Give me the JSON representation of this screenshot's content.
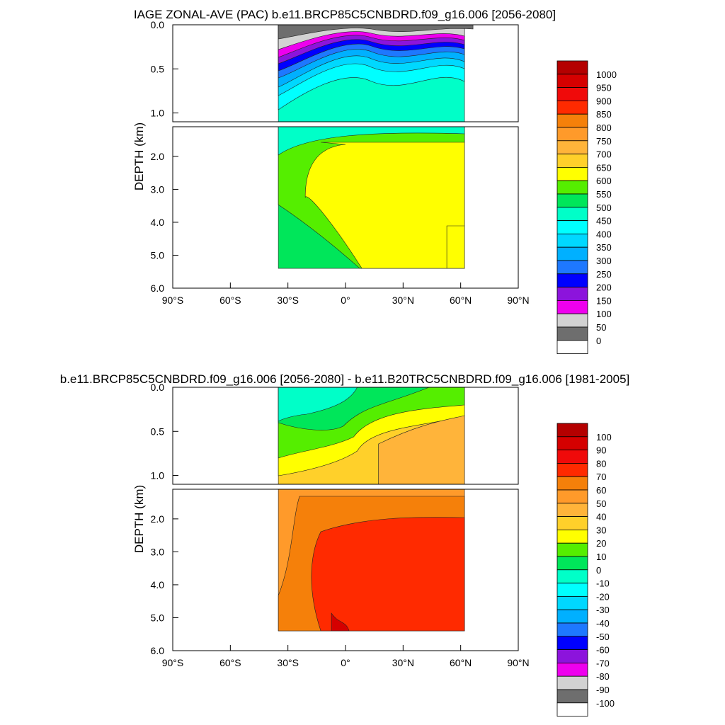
{
  "chart_data": [
    {
      "type": "heatmap",
      "title": "IAGE ZONAL-AVE (PAC) b.e11.BRCP85C5CNBDRD.f09_g16.006 [2056-2080]",
      "ylabel": "DEPTH (km)",
      "xlabel": "",
      "x_range": [
        -90,
        90
      ],
      "y_upper_range": [
        0.0,
        1.1
      ],
      "y_lower_range": [
        1.1,
        6.0
      ],
      "x_ticks": [
        -90,
        -60,
        -30,
        0,
        30,
        60,
        90
      ],
      "x_tick_labels": [
        "90°S",
        "60°S",
        "30°S",
        "0°",
        "30°N",
        "60°N",
        "90°N"
      ],
      "y_upper_ticks": [
        0.0,
        0.5,
        1.0
      ],
      "y_upper_tick_labels": [
        "0.0",
        "0.5",
        "1.0"
      ],
      "y_lower_ticks": [
        2.0,
        3.0,
        4.0,
        5.0,
        6.0
      ],
      "y_lower_tick_labels": [
        "2.0",
        "3.0",
        "4.0",
        "5.0",
        "6.0"
      ],
      "colorbar_levels": [
        "1000",
        "950",
        "900",
        "850",
        "800",
        "750",
        "700",
        "650",
        "600",
        "550",
        "500",
        "450",
        "400",
        "350",
        "300",
        "250",
        "200",
        "150",
        "100",
        "50",
        "0"
      ],
      "colorbar_colors": [
        "#b40000",
        "#d50000",
        "#f00a0a",
        "#ff2a00",
        "#f5800a",
        "#ff9a2a",
        "#ffb43a",
        "#ffd02a",
        "#ffff00",
        "#55ee00",
        "#00e65a",
        "#00ffc8",
        "#00ffff",
        "#00d8ff",
        "#00b0ff",
        "#1e78ff",
        "#0000ff",
        "#8c14dc",
        "#ee00ee",
        "#d2d2d2",
        "#6e6e6e",
        "#ffffff"
      ],
      "field": {
        "kind": "age",
        "ocean_x_range": [
          -35,
          62
        ],
        "bottom_depth_km": 5.4,
        "zonal_mean_age_years": [
          {
            "depth_km": 0.1,
            "value": 10
          },
          {
            "depth_km": 0.5,
            "value": 240
          },
          {
            "depth_km": 1.0,
            "value": 460
          },
          {
            "depth_km": 1.5,
            "value": 560
          },
          {
            "depth_km": 3.0,
            "value": 610
          },
          {
            "depth_km": 5.0,
            "value": 580
          }
        ]
      }
    },
    {
      "type": "heatmap",
      "title": "b.e11.BRCP85C5CNBDRD.f09_g16.006 [2056-2080] - b.e11.B20TRC5CNBDRD.f09_g16.006 [1981-2005]",
      "ylabel": "DEPTH (km)",
      "xlabel": "",
      "x_range": [
        -90,
        90
      ],
      "y_upper_range": [
        0.0,
        1.1
      ],
      "y_lower_range": [
        1.1,
        6.0
      ],
      "x_ticks": [
        -90,
        -60,
        -30,
        0,
        30,
        60,
        90
      ],
      "x_tick_labels": [
        "90°S",
        "60°S",
        "30°S",
        "0°",
        "30°N",
        "60°N",
        "90°N"
      ],
      "y_upper_ticks": [
        0.0,
        0.5,
        1.0
      ],
      "y_upper_tick_labels": [
        "0.0",
        "0.5",
        "1.0"
      ],
      "y_lower_ticks": [
        2.0,
        3.0,
        4.0,
        5.0,
        6.0
      ],
      "y_lower_tick_labels": [
        "2.0",
        "3.0",
        "4.0",
        "5.0",
        "6.0"
      ],
      "colorbar_levels": [
        "100",
        "90",
        "80",
        "70",
        "60",
        "50",
        "40",
        "30",
        "20",
        "10",
        "0",
        "-10",
        "-20",
        "-30",
        "-40",
        "-50",
        "-60",
        "-70",
        "-80",
        "-90",
        "-100"
      ],
      "colorbar_colors": [
        "#b40000",
        "#d50000",
        "#f00a0a",
        "#ff2a00",
        "#f5800a",
        "#ff9a2a",
        "#ffb43a",
        "#ffd02a",
        "#ffff00",
        "#55ee00",
        "#00e65a",
        "#00ffc8",
        "#00ffff",
        "#00d8ff",
        "#00b0ff",
        "#1e78ff",
        "#0000ff",
        "#8c14dc",
        "#ee00ee",
        "#d2d2d2",
        "#6e6e6e",
        "#ffffff"
      ],
      "field": {
        "kind": "diff",
        "ocean_x_range": [
          -35,
          62
        ],
        "bottom_depth_km": 5.4,
        "zonal_mean_difference_years": [
          {
            "depth_km": 0.1,
            "value": -5
          },
          {
            "depth_km": 0.5,
            "value": 15
          },
          {
            "depth_km": 1.0,
            "value": 40
          },
          {
            "depth_km": 1.5,
            "value": 55
          },
          {
            "depth_km": 3.0,
            "value": 72
          },
          {
            "depth_km": 5.0,
            "value": 70
          }
        ]
      }
    }
  ]
}
